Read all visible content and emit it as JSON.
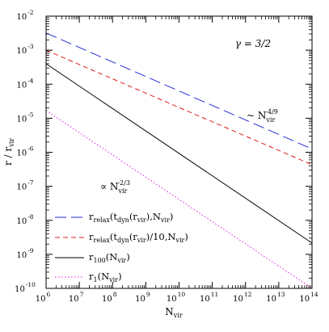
{
  "chart_data": {
    "type": "line",
    "xlabel": "N",
    "xlabel_sub": "vir",
    "ylabel": "r  /  r",
    "ylabel_sub": "vir",
    "xscale": "log",
    "yscale": "log",
    "xlim": [
      1000000.0,
      100000000000000.0
    ],
    "ylim": [
      1e-10,
      0.01
    ],
    "grid": false,
    "legend_position": "bottom-left",
    "x_ticks": [
      {
        "value": 1000000.0,
        "base": "10",
        "exp": "6"
      },
      {
        "value": 10000000.0,
        "base": "10",
        "exp": "7"
      },
      {
        "value": 100000000.0,
        "base": "10",
        "exp": "8"
      },
      {
        "value": 1000000000.0,
        "base": "10",
        "exp": "9"
      },
      {
        "value": 10000000000.0,
        "base": "10",
        "exp": "10"
      },
      {
        "value": 100000000000.0,
        "base": "10",
        "exp": "11"
      },
      {
        "value": 1000000000000.0,
        "base": "10",
        "exp": "12"
      },
      {
        "value": 10000000000000.0,
        "base": "10",
        "exp": "13"
      },
      {
        "value": 100000000000000.0,
        "base": "10",
        "exp": "14"
      }
    ],
    "y_ticks": [
      {
        "value": 0.01,
        "base": "10",
        "exp": "-2"
      },
      {
        "value": 0.001,
        "base": "10",
        "exp": "-3"
      },
      {
        "value": 0.0001,
        "base": "10",
        "exp": "-4"
      },
      {
        "value": 1e-05,
        "base": "10",
        "exp": "-5"
      },
      {
        "value": 1e-06,
        "base": "10",
        "exp": "-6"
      },
      {
        "value": 1e-07,
        "base": "10",
        "exp": "-7"
      },
      {
        "value": 1e-08,
        "base": "10",
        "exp": "-8"
      },
      {
        "value": 1e-09,
        "base": "10",
        "exp": "-9"
      },
      {
        "value": 1e-10,
        "base": "10",
        "exp": "-10"
      }
    ],
    "series": [
      {
        "id": "relax",
        "label_parts": [
          {
            "t": "r"
          },
          {
            "t": "relax",
            "sub": true
          },
          {
            "t": "(t"
          },
          {
            "t": "dyn",
            "sub": true
          },
          {
            "t": "(r"
          },
          {
            "t": "vir",
            "sub": true
          },
          {
            "t": "),N"
          },
          {
            "t": "vir",
            "sub": true
          },
          {
            "t": ")"
          }
        ],
        "color": "#1f2bd8",
        "dash": "long-dash",
        "x": [
          1000000.0,
          100000000000000.0
        ],
        "y": [
          0.0032,
          1.25e-06
        ]
      },
      {
        "id": "relax10",
        "label_parts": [
          {
            "t": "r"
          },
          {
            "t": "relax",
            "sub": true
          },
          {
            "t": "(t"
          },
          {
            "t": "dyn",
            "sub": true
          },
          {
            "t": "(r"
          },
          {
            "t": "vir",
            "sub": true
          },
          {
            "t": ")/10,N"
          },
          {
            "t": "vir",
            "sub": true
          },
          {
            "t": ")"
          }
        ],
        "color": "#e11b1b",
        "dash": "short-dash",
        "x": [
          1000000.0,
          100000000000000.0
        ],
        "y": [
          0.001,
          4.3e-07
        ]
      },
      {
        "id": "r100",
        "label_parts": [
          {
            "t": "r"
          },
          {
            "t": "100",
            "sub": true
          },
          {
            "t": "(N"
          },
          {
            "t": "vir",
            "sub": true
          },
          {
            "t": ")"
          }
        ],
        "color": "#000000",
        "dash": "solid",
        "x": [
          1000000.0,
          100000000000000.0
        ],
        "y": [
          0.0004,
          2.15e-09
        ]
      },
      {
        "id": "r1",
        "label_parts": [
          {
            "t": "r"
          },
          {
            "t": "1",
            "sub": true
          },
          {
            "t": "(N"
          },
          {
            "t": "vir",
            "sub": true
          },
          {
            "t": ")"
          }
        ],
        "color": "#e01ad8",
        "dash": "dotted",
        "x": [
          1000000.0,
          100000000000000.0
        ],
        "y": [
          1.7e-05,
          1e-10
        ]
      }
    ],
    "annotations": {
      "gamma": "γ = 3/2",
      "slope_upper": {
        "prefix": "~ N",
        "sub": "vir",
        "sup": "-4/9"
      },
      "slope_lower": {
        "prefix": "∝ N",
        "sub": "vir",
        "sup": "-2/3"
      }
    }
  }
}
